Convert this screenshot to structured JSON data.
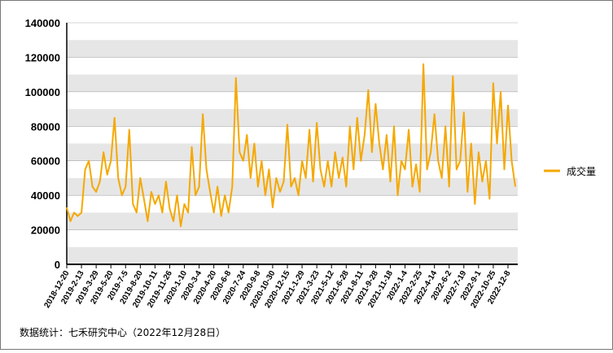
{
  "chart_data": {
    "type": "line",
    "source": "数据统计：七禾研究中心（2022年12月28日）",
    "categories": [
      "2018-12-20",
      null,
      null,
      null,
      "2019-2-13",
      null,
      null,
      null,
      "2019-3-29",
      null,
      null,
      null,
      "2019-5-20",
      null,
      null,
      null,
      "2019-7-5",
      null,
      null,
      null,
      "2019-8-20",
      null,
      null,
      null,
      "2019-10-11",
      null,
      null,
      null,
      "2019-11-26",
      null,
      null,
      null,
      "2020-1-10",
      null,
      null,
      null,
      "2020-3-4",
      null,
      null,
      null,
      "2020-4-20",
      null,
      null,
      null,
      "2020-6-8",
      null,
      null,
      null,
      "2020-7-24",
      null,
      null,
      null,
      "2020-9-8",
      null,
      null,
      null,
      "2020-10-30",
      null,
      null,
      null,
      "2020-12-15",
      null,
      null,
      null,
      "2021-1-29",
      null,
      null,
      null,
      "2021-3-23",
      null,
      null,
      null,
      "2021-5-12",
      null,
      null,
      null,
      "2021-6-28",
      null,
      null,
      null,
      "2021-8-11",
      null,
      null,
      null,
      "2021-9-28",
      null,
      null,
      null,
      "2021-11-18",
      null,
      null,
      null,
      "2022-1-4",
      null,
      null,
      null,
      "2022-2-25",
      null,
      null,
      null,
      "2022-4-14",
      null,
      null,
      null,
      "2022-6-2",
      null,
      null,
      null,
      "2022-7-19",
      null,
      null,
      null,
      "2022-9-1",
      null,
      null,
      null,
      "2022-10-25",
      null,
      null,
      null,
      "2022-12-8",
      null,
      null
    ],
    "series": [
      {
        "name": "成交量",
        "color": "#f5a800",
        "values": [
          33000,
          25000,
          30000,
          28000,
          30000,
          55000,
          60000,
          45000,
          42000,
          48000,
          65000,
          52000,
          60000,
          85000,
          50000,
          40000,
          45000,
          78000,
          35000,
          30000,
          50000,
          38000,
          25000,
          42000,
          35000,
          40000,
          30000,
          48000,
          32000,
          25000,
          40000,
          22000,
          35000,
          30000,
          68000,
          40000,
          45000,
          87000,
          55000,
          42000,
          30000,
          45000,
          28000,
          40000,
          30000,
          45000,
          108000,
          65000,
          60000,
          75000,
          50000,
          70000,
          45000,
          60000,
          40000,
          55000,
          33000,
          50000,
          42000,
          48000,
          81000,
          45000,
          50000,
          40000,
          60000,
          50000,
          78000,
          48000,
          82000,
          55000,
          45000,
          60000,
          45000,
          65000,
          50000,
          62000,
          45000,
          80000,
          55000,
          85000,
          60000,
          75000,
          101000,
          65000,
          93000,
          70000,
          55000,
          75000,
          48000,
          80000,
          40000,
          60000,
          55000,
          78000,
          45000,
          58000,
          42000,
          116000,
          55000,
          65000,
          87000,
          60000,
          50000,
          80000,
          45000,
          109000,
          55000,
          60000,
          88000,
          42000,
          70000,
          35000,
          65000,
          48000,
          60000,
          38000,
          105000,
          70000,
          100000,
          55000,
          92000,
          60000,
          45000
        ]
      }
    ],
    "ylim": [
      0,
      140000
    ],
    "yticks": [
      0,
      20000,
      40000,
      60000,
      80000,
      100000,
      120000,
      140000
    ],
    "grid": true,
    "legend": "right"
  }
}
